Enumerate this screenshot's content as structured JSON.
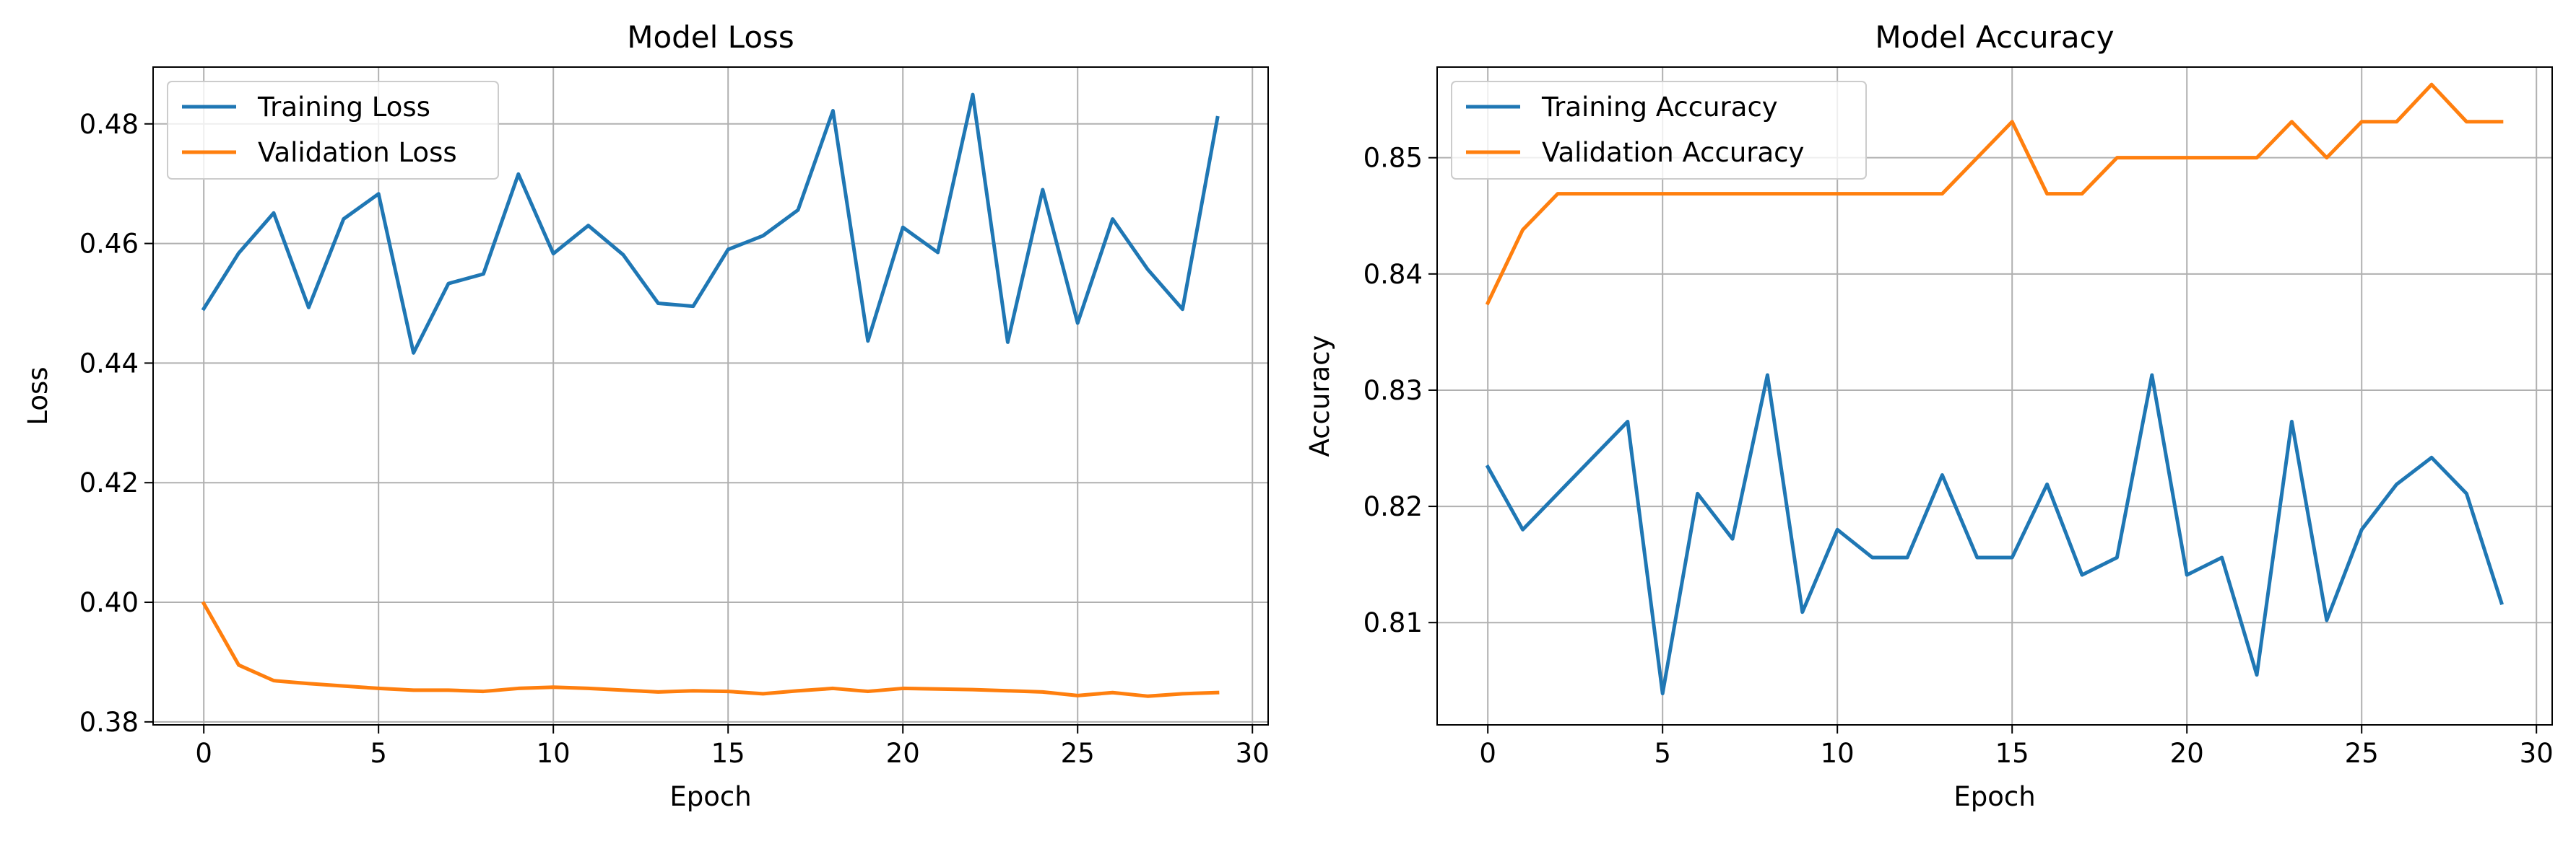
{
  "chart_data": [
    {
      "type": "line",
      "title": "Model Loss",
      "xlabel": "Epoch",
      "ylabel": "Loss",
      "xlim": [
        -1.45,
        30.45
      ],
      "ylim": [
        0.3795,
        0.4895
      ],
      "xticks": [
        0,
        5,
        10,
        15,
        20,
        25,
        30
      ],
      "xtick_labels": [
        "0",
        "5",
        "10",
        "15",
        "20",
        "25",
        "30"
      ],
      "yticks": [
        0.38,
        0.4,
        0.42,
        0.44,
        0.46,
        0.48
      ],
      "ytick_labels": [
        "0.38",
        "0.40",
        "0.42",
        "0.44",
        "0.46",
        "0.48"
      ],
      "grid": true,
      "legend_position": "top-left",
      "x": [
        0,
        1,
        2,
        3,
        4,
        5,
        6,
        7,
        8,
        9,
        10,
        11,
        12,
        13,
        14,
        15,
        16,
        17,
        18,
        19,
        20,
        21,
        22,
        23,
        24,
        25,
        26,
        27,
        28,
        29
      ],
      "series": [
        {
          "name": "Training Loss",
          "color": "#1f77b4",
          "values": [
            0.4491,
            0.4584,
            0.4651,
            0.4493,
            0.4641,
            0.4683,
            0.4417,
            0.4533,
            0.4549,
            0.4716,
            0.4583,
            0.463,
            0.4581,
            0.45,
            0.4495,
            0.459,
            0.4613,
            0.4656,
            0.4822,
            0.4437,
            0.4627,
            0.4585,
            0.4849,
            0.4435,
            0.469,
            0.4467,
            0.4641,
            0.4557,
            0.449,
            0.481
          ]
        },
        {
          "name": "Validation Loss",
          "color": "#ff7f0e",
          "values": [
            0.3998,
            0.3895,
            0.3869,
            0.3864,
            0.386,
            0.3856,
            0.3853,
            0.3853,
            0.3851,
            0.3856,
            0.3858,
            0.3856,
            0.3853,
            0.385,
            0.3852,
            0.3851,
            0.3847,
            0.3852,
            0.3856,
            0.3851,
            0.3856,
            0.3855,
            0.3854,
            0.3852,
            0.385,
            0.3844,
            0.3849,
            0.3843,
            0.3847,
            0.3849
          ]
        }
      ]
    },
    {
      "type": "line",
      "title": "Model Accuracy",
      "xlabel": "Epoch",
      "ylabel": "Accuracy",
      "xlim": [
        -1.45,
        30.45
      ],
      "ylim": [
        0.8012,
        0.8578
      ],
      "xticks": [
        0,
        5,
        10,
        15,
        20,
        25,
        30
      ],
      "xtick_labels": [
        "0",
        "5",
        "10",
        "15",
        "20",
        "25",
        "30"
      ],
      "yticks": [
        0.81,
        0.82,
        0.83,
        0.84,
        0.85
      ],
      "ytick_labels": [
        "0.81",
        "0.82",
        "0.83",
        "0.84",
        "0.85"
      ],
      "grid": true,
      "legend_position": "top-left",
      "x": [
        0,
        1,
        2,
        3,
        4,
        5,
        6,
        7,
        8,
        9,
        10,
        11,
        12,
        13,
        14,
        15,
        16,
        17,
        18,
        19,
        20,
        21,
        22,
        23,
        24,
        25,
        26,
        27,
        28,
        29
      ],
      "series": [
        {
          "name": "Training Accuracy",
          "color": "#1f77b4",
          "values": [
            0.8234,
            0.818,
            0.8211,
            0.8242,
            0.8273,
            0.8039,
            0.8211,
            0.8172,
            0.8313,
            0.8109,
            0.818,
            0.8156,
            0.8156,
            0.8227,
            0.8156,
            0.8156,
            0.8219,
            0.8141,
            0.8156,
            0.8313,
            0.8141,
            0.8156,
            0.8055,
            0.8273,
            0.8102,
            0.818,
            0.8219,
            0.8242,
            0.8211,
            0.8117
          ]
        },
        {
          "name": "Validation Accuracy",
          "color": "#ff7f0e",
          "values": [
            0.8375,
            0.8438,
            0.8469,
            0.8469,
            0.8469,
            0.8469,
            0.8469,
            0.8469,
            0.8469,
            0.8469,
            0.8469,
            0.8469,
            0.8469,
            0.8469,
            0.85,
            0.8531,
            0.8469,
            0.8469,
            0.85,
            0.85,
            0.85,
            0.85,
            0.85,
            0.8531,
            0.85,
            0.8531,
            0.8531,
            0.8563,
            0.8531,
            0.8531
          ]
        }
      ]
    }
  ]
}
